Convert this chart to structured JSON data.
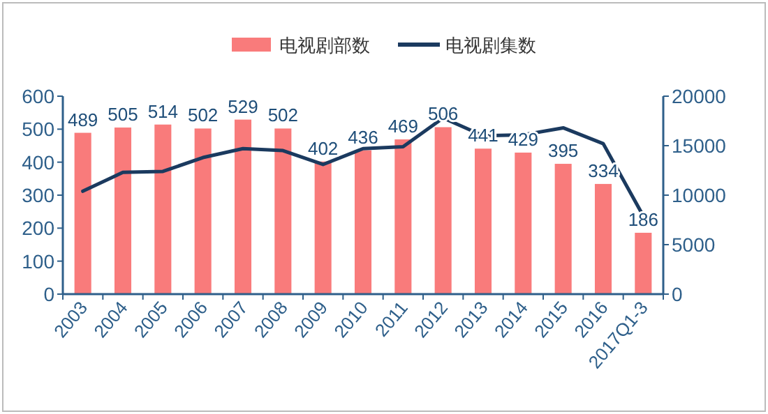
{
  "chart_data": {
    "type": "bar",
    "categories": [
      "2003",
      "2004",
      "2005",
      "2006",
      "2007",
      "2008",
      "2009",
      "2010",
      "2011",
      "2012",
      "2013",
      "2014",
      "2015",
      "2016",
      "2017Q1-3"
    ],
    "series": [
      {
        "name": "电视剧部数",
        "color": "#f97b7b",
        "values": [
          489,
          505,
          514,
          502,
          529,
          502,
          402,
          436,
          469,
          506,
          441,
          429,
          395,
          334,
          186
        ],
        "value_labels": [
          "489",
          "505",
          "514",
          "502",
          "529",
          "502",
          "402",
          "436",
          "469",
          "506",
          "441",
          "429",
          "395",
          "334",
          "186"
        ]
      },
      {
        "name": "电视剧集数",
        "type": "line",
        "axis": "y2",
        "color": "#1b3a5f",
        "values": [
          10400,
          12300,
          12400,
          13800,
          14700,
          14500,
          13100,
          14700,
          14900,
          17800,
          16000,
          16100,
          16800,
          15200,
          7900
        ]
      }
    ],
    "ylim": [
      0,
      600
    ],
    "yticks": [
      0,
      100,
      200,
      300,
      400,
      500,
      600
    ],
    "y2lim": [
      0,
      20000
    ],
    "y2ticks": [
      0,
      5000,
      10000,
      15000,
      20000
    ],
    "legend": "top",
    "grid": false
  }
}
